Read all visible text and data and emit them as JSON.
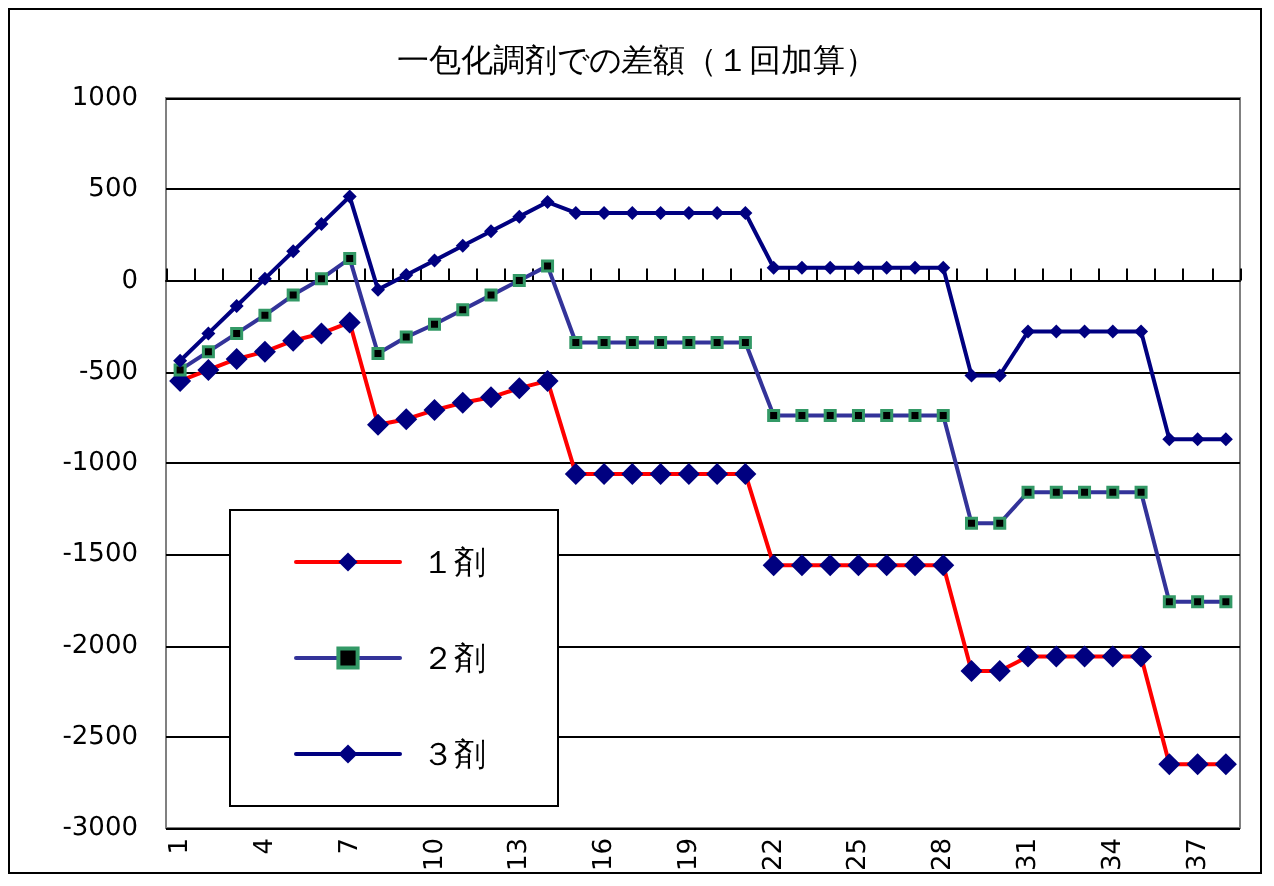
{
  "chart_data": {
    "type": "line",
    "title": "一包化調剤での差額（１回加算）",
    "categories": [
      "1",
      null,
      null,
      "4",
      null,
      null,
      "7",
      null,
      null,
      "10",
      null,
      null,
      "13",
      null,
      null,
      "16",
      null,
      null,
      "19",
      null,
      null,
      "22",
      null,
      null,
      "25",
      null,
      null,
      "28",
      null,
      null,
      "31",
      null,
      null,
      "34",
      null,
      null,
      "37",
      null
    ],
    "ylim": [
      -3000,
      1000
    ],
    "yticks": [
      1000,
      500,
      0,
      -500,
      -1000,
      -1500,
      -2000,
      -2500,
      -3000
    ],
    "grid": "y",
    "legend": "bottom left",
    "series": [
      {
        "name": "１剤",
        "color": "#ff0000",
        "marker": "diamond",
        "values": [
          -550,
          -490,
          -430,
          -390,
          -330,
          -290,
          -230,
          -790,
          -760,
          -710,
          -670,
          -640,
          -590,
          -550,
          -1060,
          -1060,
          -1060,
          -1060,
          -1060,
          -1060,
          -1060,
          -1560,
          -1560,
          -1560,
          -1560,
          -1560,
          -1560,
          -1560,
          -2140,
          -2140,
          -2060,
          -2060,
          -2060,
          -2060,
          -2060,
          -2650,
          -2650,
          -2650
        ]
      },
      {
        "name": "２剤",
        "color": "#333399",
        "marker": "square",
        "values": [
          -490,
          -390,
          -290,
          -190,
          -80,
          10,
          120,
          -400,
          -310,
          -240,
          -160,
          -80,
          0,
          80,
          -340,
          -340,
          -340,
          -340,
          -340,
          -340,
          -340,
          -740,
          -740,
          -740,
          -740,
          -740,
          -740,
          -740,
          -1330,
          -1330,
          -1160,
          -1160,
          -1160,
          -1160,
          -1160,
          -1760,
          -1760,
          -1760
        ]
      },
      {
        "name": "３剤",
        "color": "#000080",
        "marker": "diamond",
        "values": [
          -440,
          -290,
          -140,
          10,
          160,
          310,
          460,
          -50,
          30,
          110,
          190,
          270,
          350,
          430,
          370,
          370,
          370,
          370,
          370,
          370,
          370,
          70,
          70,
          70,
          70,
          70,
          70,
          70,
          -520,
          -520,
          -280,
          -280,
          -280,
          -280,
          -280,
          -870,
          -870,
          -870
        ]
      }
    ]
  }
}
